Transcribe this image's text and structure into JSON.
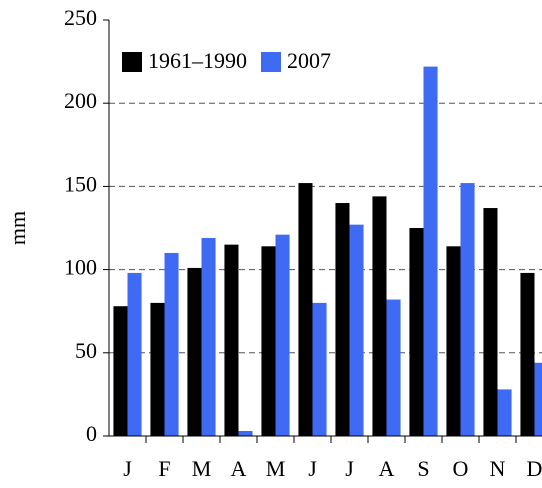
{
  "chart_data": {
    "type": "bar",
    "y_label": "mm",
    "categories": [
      "J",
      "F",
      "M",
      "A",
      "M",
      "J",
      "J",
      "A",
      "S",
      "O",
      "N",
      "D"
    ],
    "series": [
      {
        "name": "1961–1990",
        "color": "#000000",
        "values": [
          78,
          80,
          101,
          115,
          114,
          152,
          140,
          144,
          125,
          114,
          137,
          98
        ]
      },
      {
        "name": "2007",
        "color": "#3f6af4",
        "values": [
          98,
          110,
          119,
          3,
          121,
          80,
          127,
          82,
          222,
          152,
          28,
          44
        ]
      }
    ],
    "ylim": [
      0,
      250
    ],
    "yticks": [
      0,
      50,
      100,
      150,
      200,
      250
    ],
    "grid": true,
    "legend": "upper left"
  }
}
